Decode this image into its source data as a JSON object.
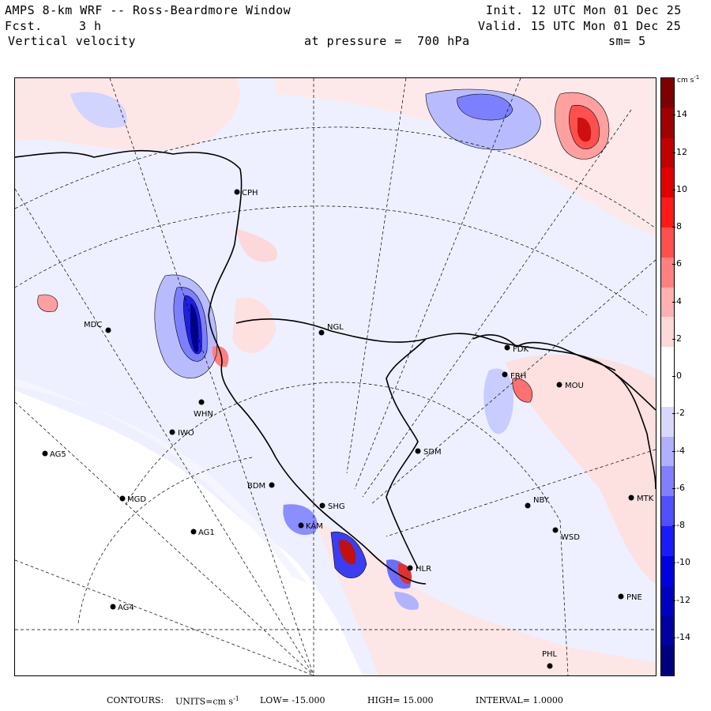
{
  "header": {
    "title": "AMPS 8-km WRF -- Ross-Beardmore Window",
    "init": "Init. 12 UTC Mon 01 Dec 25",
    "fcst_label": "Fcst.",
    "fcst_value": "3 h",
    "valid": "Valid. 15 UTC Mon 01 Dec 25",
    "field": "Vertical velocity",
    "pressure": "at pressure =  700 hPa",
    "smoothing": "sm= 5"
  },
  "colorbar": {
    "unit": "cm s",
    "unit_exp": "-1",
    "ticks": [
      "14",
      "12",
      "10",
      "8",
      "6",
      "4",
      "2",
      "0",
      "-2",
      "-4",
      "-6",
      "-8",
      "-10",
      "-12",
      "-14"
    ],
    "max": 16,
    "min": -16,
    "colors": [
      "#7f0000",
      "#a00000",
      "#c00000",
      "#e00000",
      "#ff1a1a",
      "#ff5050",
      "#ff8080",
      "#ffb0b0",
      "#ffd8d8",
      "#ffffff",
      "#ffffff",
      "#d8d8ff",
      "#b0b0ff",
      "#8080ff",
      "#5050ff",
      "#1a1aff",
      "#0000e0",
      "#0000c0",
      "#0000a0",
      "#00007f"
    ]
  },
  "stations": [
    {
      "code": "CPH"
    },
    {
      "code": "MDC"
    },
    {
      "code": "NGL"
    },
    {
      "code": "FDK"
    },
    {
      "code": "FRH"
    },
    {
      "code": "MOU"
    },
    {
      "code": "WHN"
    },
    {
      "code": "IWO"
    },
    {
      "code": "AG5"
    },
    {
      "code": "SDM"
    },
    {
      "code": "BDM"
    },
    {
      "code": "SHG"
    },
    {
      "code": "KAM"
    },
    {
      "code": "MGD"
    },
    {
      "code": "AG1"
    },
    {
      "code": "NBY"
    },
    {
      "code": "MTK"
    },
    {
      "code": "WSD"
    },
    {
      "code": "HLR"
    },
    {
      "code": "PNE"
    },
    {
      "code": "AG4"
    },
    {
      "code": "PHL"
    }
  ],
  "footer": {
    "contours_label": "CONTOURS:",
    "units_label": "UNITS=cm s",
    "units_exp": "-1",
    "low": "LOW= -15.000",
    "high": "HIGH=  15.000",
    "interval": "INTERVAL=   1.0000"
  }
}
